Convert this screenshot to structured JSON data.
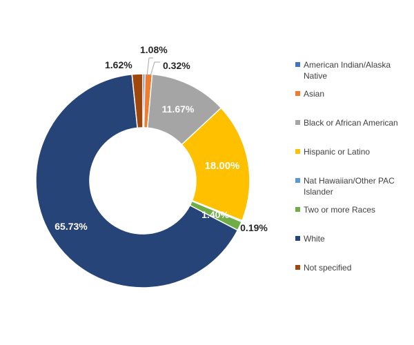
{
  "chart_data": {
    "type": "pie",
    "title": "",
    "legend_position": "right",
    "slices": [
      {
        "name": "American Indian/Alaska Native",
        "value": 0.32,
        "label": "0.32%",
        "color": "#4472C4"
      },
      {
        "name": "Asian",
        "value": 1.08,
        "label": "1.08%",
        "color": "#ED7D31"
      },
      {
        "name": "Black or African American",
        "value": 11.67,
        "label": "11.67%",
        "color": "#A5A5A5"
      },
      {
        "name": "Hispanic or Latino",
        "value": 18.0,
        "label": "18.00%",
        "color": "#FFC000"
      },
      {
        "name": "Nat Hawaiian/Other PAC Islander",
        "value": 0.19,
        "label": "0.19%",
        "color": "#5B9BD5"
      },
      {
        "name": "Two or more Races",
        "value": 1.4,
        "label": "1.40%",
        "color": "#70AD47"
      },
      {
        "name": "White",
        "value": 65.73,
        "label": "65.73%",
        "color": "#264478"
      },
      {
        "name": "Not specified",
        "value": 1.62,
        "label": "1.62%",
        "color": "#9E480E"
      }
    ]
  },
  "legend": {
    "items": [
      {
        "label": "American Indian/Alaska Native",
        "color": "#4472C4"
      },
      {
        "label": "Asian",
        "color": "#ED7D31"
      },
      {
        "label": "Black or African American",
        "color": "#A5A5A5"
      },
      {
        "label": "Hispanic or Latino",
        "color": "#FFC000"
      },
      {
        "label": "Nat Hawaiian/Other PAC Islander",
        "color": "#5B9BD5"
      },
      {
        "label": "Two or more Races",
        "color": "#70AD47"
      },
      {
        "label": "White",
        "color": "#264478"
      },
      {
        "label": "Not specified",
        "color": "#9E480E"
      }
    ]
  }
}
